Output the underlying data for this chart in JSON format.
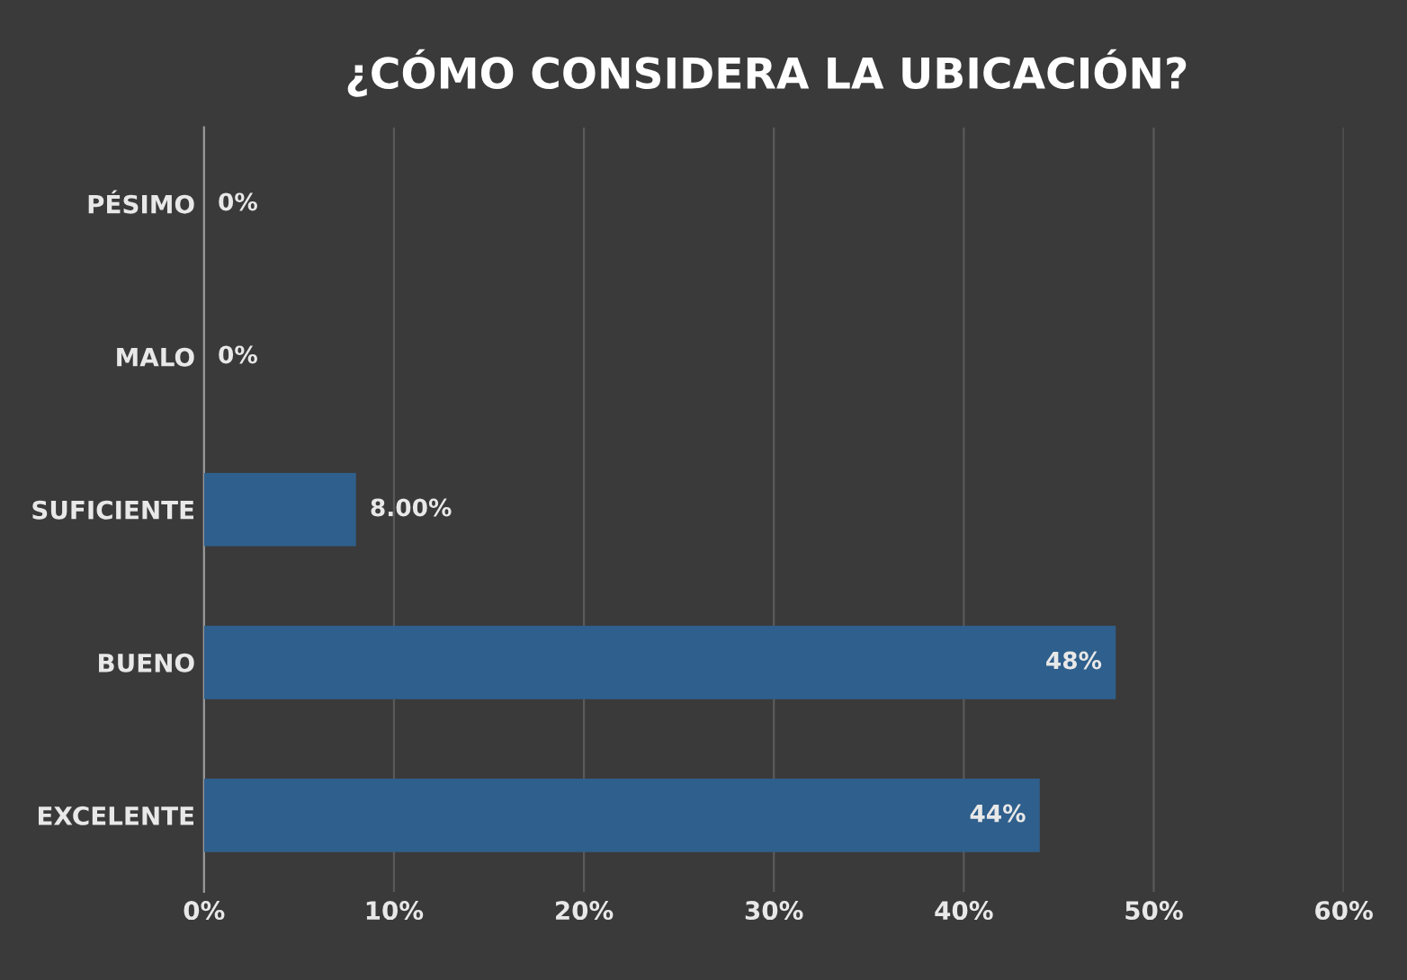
{
  "chart_data": {
    "type": "bar",
    "orientation": "horizontal",
    "title": "¿CÓMO CONSIDERA LA UBICACIÓN?",
    "categories": [
      "PÉSIMO",
      "MALO",
      "SUFICIENTE",
      "BUENO",
      "EXCELENTE"
    ],
    "values": [
      0,
      0,
      8,
      48,
      44
    ],
    "value_labels": [
      "0%",
      "0%",
      "8.00%",
      "48%",
      "44%"
    ],
    "color": "#2f5f8c",
    "xlim": [
      0,
      60
    ],
    "xticks": [
      {
        "value": 0,
        "label": "0%"
      },
      {
        "value": 10,
        "label": "10%"
      },
      {
        "value": 20,
        "label": "20%"
      },
      {
        "value": 30,
        "label": "30%"
      },
      {
        "value": 40,
        "label": "40%"
      },
      {
        "value": 50,
        "label": "50%"
      },
      {
        "value": 60,
        "label": "60%"
      }
    ],
    "grid": "x"
  }
}
